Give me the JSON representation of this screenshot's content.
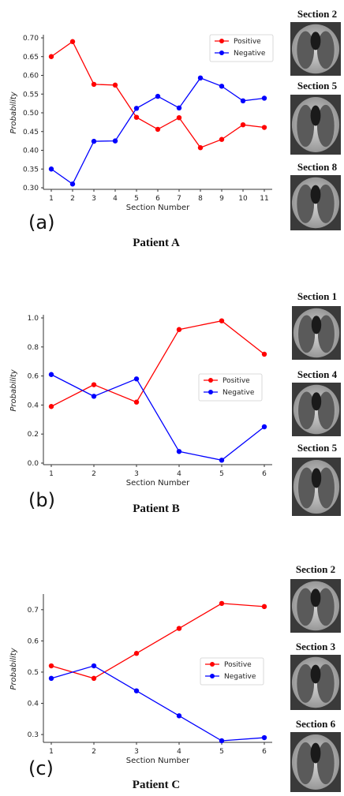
{
  "colors": {
    "positive": "#ff0000",
    "negative": "#0000ff",
    "axis": "#333333"
  },
  "panels": [
    {
      "tag": "(a)",
      "patient": "Patient A",
      "sections": [
        "Section 2",
        "Section 5",
        "Section 8"
      ]
    },
    {
      "tag": "(b)",
      "patient": "Patient B",
      "sections": [
        "Section 1",
        "Section 4",
        "Section 5"
      ]
    },
    {
      "tag": "(c)",
      "patient": "Patient C",
      "sections": [
        "Section 2",
        "Section 3",
        "Section 6"
      ]
    }
  ],
  "chart_data": [
    {
      "type": "line",
      "xlabel": "Section Number",
      "ylabel": "Probability",
      "x": [
        1,
        2,
        3,
        4,
        5,
        6,
        7,
        8,
        9,
        10,
        11
      ],
      "ylim": [
        0.3,
        0.7
      ],
      "yticks": [
        0.3,
        0.35,
        0.4,
        0.45,
        0.5,
        0.55,
        0.6,
        0.65,
        0.7
      ],
      "ytick_labels": [
        "0.30",
        "0.35",
        "0.40",
        "0.45",
        "0.50",
        "0.55",
        "0.60",
        "0.65",
        "0.70"
      ],
      "legend": "top-right",
      "grid": false,
      "series": [
        {
          "name": "Positive",
          "values": [
            0.65,
            0.69,
            0.576,
            0.574,
            0.488,
            0.456,
            0.487,
            0.407,
            0.429,
            0.468,
            0.461
          ]
        },
        {
          "name": "Negative",
          "values": [
            0.35,
            0.31,
            0.424,
            0.425,
            0.512,
            0.544,
            0.513,
            0.593,
            0.571,
            0.532,
            0.539
          ]
        }
      ]
    },
    {
      "type": "line",
      "xlabel": "Section Number",
      "ylabel": "Probability",
      "x": [
        1,
        2,
        3,
        4,
        5,
        6
      ],
      "ylim": [
        0.0,
        1.0
      ],
      "yticks": [
        0.0,
        0.2,
        0.4,
        0.6,
        0.8,
        1.0
      ],
      "ytick_labels": [
        "0.0",
        "0.2",
        "0.4",
        "0.6",
        "0.8",
        "1.0"
      ],
      "legend": "center-right",
      "grid": false,
      "series": [
        {
          "name": "Positive",
          "values": [
            0.39,
            0.54,
            0.42,
            0.92,
            0.98,
            0.75
          ]
        },
        {
          "name": "Negative",
          "values": [
            0.61,
            0.46,
            0.58,
            0.08,
            0.02,
            0.25
          ]
        }
      ]
    },
    {
      "type": "line",
      "xlabel": "Section Number",
      "ylabel": "Probability",
      "x": [
        1,
        2,
        3,
        4,
        5,
        6
      ],
      "ylim": [
        0.28,
        0.74
      ],
      "yticks": [
        0.3,
        0.4,
        0.5,
        0.6,
        0.7
      ],
      "ytick_labels": [
        "0.3",
        "0.4",
        "0.5",
        "0.6",
        "0.7"
      ],
      "legend": "center-right",
      "grid": false,
      "series": [
        {
          "name": "Positive",
          "values": [
            0.52,
            0.48,
            0.56,
            0.64,
            0.72,
            0.71
          ]
        },
        {
          "name": "Negative",
          "values": [
            0.48,
            0.52,
            0.44,
            0.36,
            0.28,
            0.29
          ]
        }
      ]
    }
  ]
}
